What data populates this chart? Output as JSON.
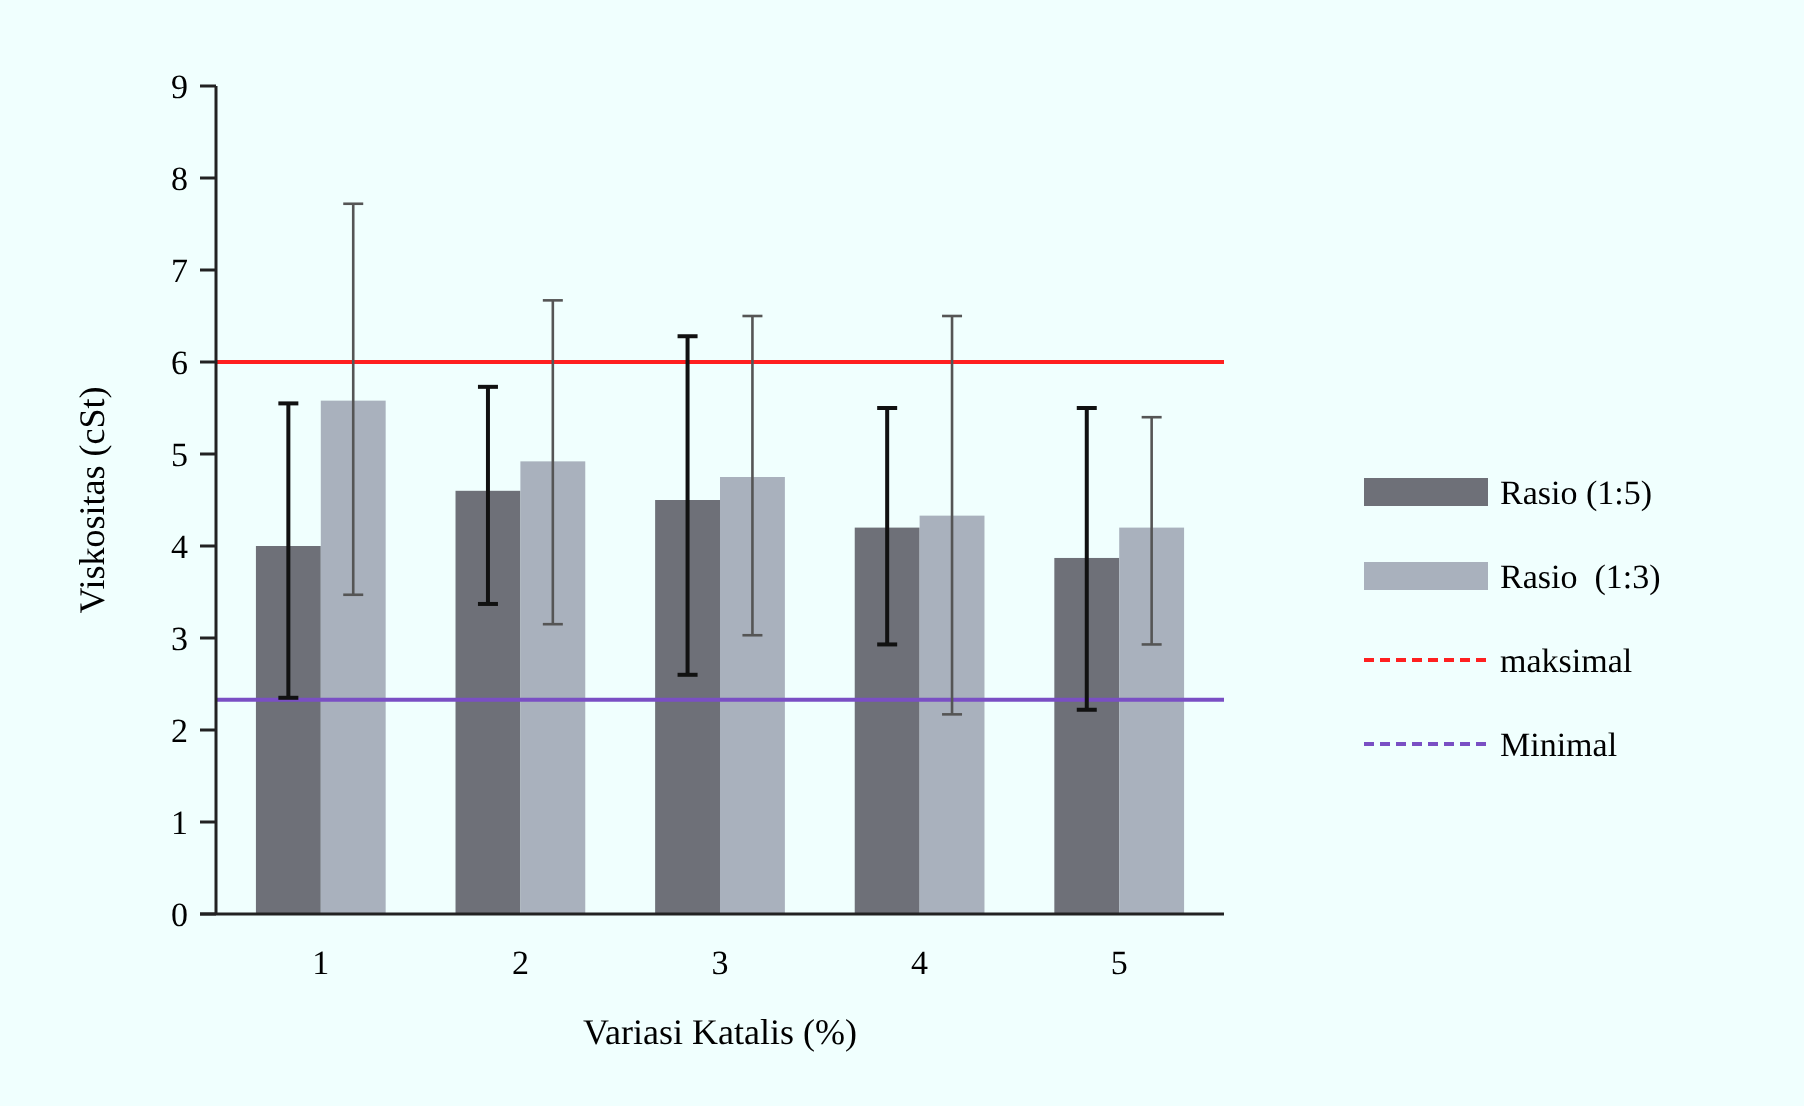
{
  "chart_data": {
    "type": "bar",
    "xlabel": "Variasi Katalis (%)",
    "ylabel": "Viskositas (cSt)",
    "categories": [
      "1",
      "2",
      "3",
      "4",
      "5"
    ],
    "series": [
      {
        "name": "Rasio (1:5)",
        "color": "#6e7078",
        "values": [
          4.0,
          4.6,
          4.5,
          4.2,
          3.87
        ],
        "errors": [
          [
            2.35,
            5.55
          ],
          [
            3.37,
            5.73
          ],
          [
            2.6,
            6.28
          ],
          [
            2.93,
            5.5
          ],
          [
            2.22,
            5.5
          ]
        ]
      },
      {
        "name": "Rasio  (1:3)",
        "color": "#a9b1bd",
        "values": [
          5.58,
          4.92,
          4.75,
          4.33,
          4.2
        ],
        "errors": [
          [
            3.47,
            7.72
          ],
          [
            3.15,
            6.67
          ],
          [
            3.03,
            6.5
          ],
          [
            2.17,
            6.5
          ],
          [
            2.93,
            5.4
          ]
        ]
      }
    ],
    "ylim": [
      0,
      9
    ],
    "yticks": [
      0,
      1,
      2,
      3,
      4,
      5,
      6,
      7,
      8,
      9
    ],
    "grid": false,
    "legend": "right",
    "ref_lines": [
      {
        "axis": "y",
        "value": 6,
        "label": "maksimal",
        "color": "#ff2020"
      },
      {
        "axis": "y",
        "value": 2.33,
        "label": "Minimal",
        "color": "#7a4fc4"
      }
    ]
  }
}
